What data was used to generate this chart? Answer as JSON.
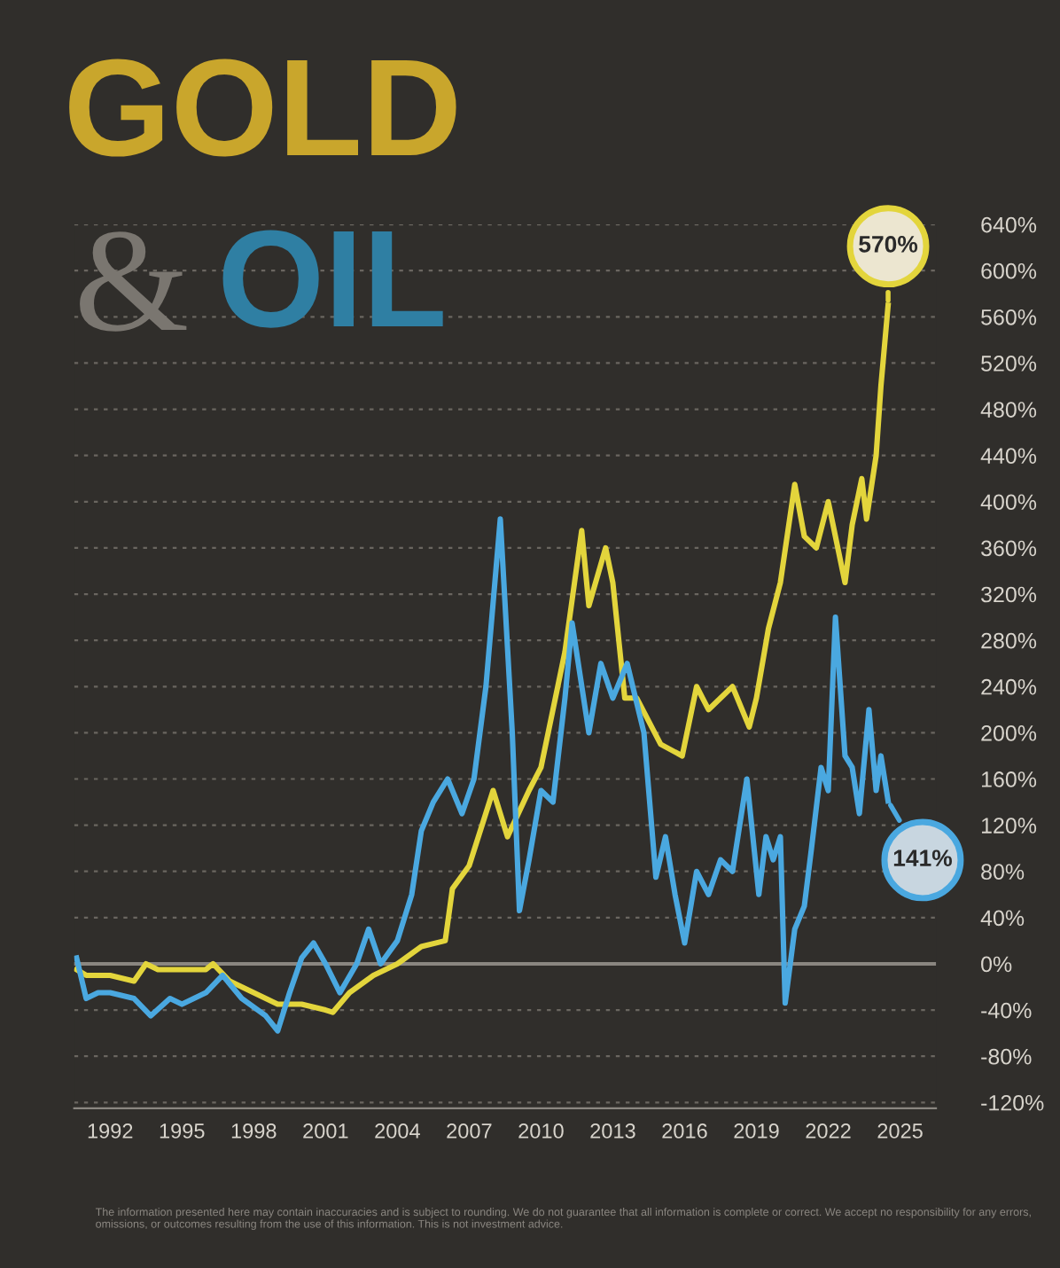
{
  "chart_data": {
    "type": "line",
    "title": "GOLD",
    "subtitle": "& OIL",
    "xlim": [
      1990.5,
      2026.5
    ],
    "xticks": [
      1992,
      1995,
      1998,
      2001,
      2004,
      2007,
      2010,
      2013,
      2016,
      2019,
      2022,
      2025
    ],
    "ylim": [
      -125,
      640
    ],
    "yticks": [
      {
        "value": -120,
        "label": "-120%"
      },
      {
        "value": -80,
        "label": "-80%"
      },
      {
        "value": -40,
        "label": "-40%"
      },
      {
        "value": 0,
        "label": "0%"
      },
      {
        "value": 40,
        "label": "40%"
      },
      {
        "value": 80,
        "label": "80%"
      },
      {
        "value": 120,
        "label": "120%"
      },
      {
        "value": 160,
        "label": "160%"
      },
      {
        "value": 200,
        "label": "200%"
      },
      {
        "value": 240,
        "label": "240%"
      },
      {
        "value": 280,
        "label": "280%"
      },
      {
        "value": 320,
        "label": "320%"
      },
      {
        "value": 360,
        "label": "360%"
      },
      {
        "value": 400,
        "label": "400%"
      },
      {
        "value": 440,
        "label": "440%"
      },
      {
        "value": 480,
        "label": "480%"
      },
      {
        "value": 520,
        "label": "520%"
      },
      {
        "value": 560,
        "label": "560%"
      },
      {
        "value": 600,
        "label": "600%"
      },
      {
        "value": 640,
        "label": "640%"
      }
    ],
    "grid": "y",
    "line_style": "solid",
    "marker": "none",
    "ref_lines": [
      {
        "axis": "y",
        "value": 0,
        "color": "#8a8680"
      }
    ],
    "series": [
      {
        "color": "#e3d53c",
        "x": [
          1990.6,
          1991,
          1992,
          1993,
          1993.5,
          1994,
          1995,
          1996,
          1996.3,
          1997,
          1998,
          1999,
          2000,
          2001,
          2001.3,
          2002,
          2003,
          2004,
          2005,
          2006,
          2006.3,
          2007,
          2008,
          2008.6,
          2009.5,
          2010,
          2011,
          2011.7,
          2012,
          2012.7,
          2013,
          2013.5,
          2014,
          2015,
          2015.9,
          2016.5,
          2017,
          2018,
          2018.7,
          2019,
          2019.5,
          2020,
          2020.6,
          2021,
          2021.5,
          2022,
          2022.7,
          2023,
          2023.4,
          2023.6,
          2024,
          2024.2,
          2024.5
        ],
        "values": [
          -5,
          -10,
          -10,
          -15,
          0,
          -5,
          -5,
          -5,
          0,
          -15,
          -25,
          -35,
          -35,
          -40,
          -42,
          -25,
          -10,
          0,
          15,
          20,
          65,
          85,
          150,
          110,
          150,
          170,
          270,
          375,
          310,
          360,
          330,
          230,
          230,
          190,
          180,
          240,
          220,
          240,
          205,
          230,
          290,
          330,
          415,
          370,
          360,
          400,
          330,
          380,
          420,
          385,
          440,
          500,
          570
        ]
      },
      {
        "color": "#4aa8e0",
        "x": [
          1990.6,
          1991,
          1991.5,
          1992,
          1993,
          1993.7,
          1994.5,
          1995,
          1996,
          1996.7,
          1997.5,
          1998.5,
          1999,
          1999.5,
          2000,
          2000.5,
          2001,
          2001.6,
          2002.3,
          2002.8,
          2003.3,
          2004,
          2004.6,
          2005,
          2005.5,
          2006.1,
          2006.7,
          2007.2,
          2007.7,
          2008.3,
          2008.8,
          2009.1,
          2009.5,
          2010,
          2010.5,
          2011,
          2011.3,
          2012,
          2012.5,
          2013,
          2013.6,
          2014.3,
          2014.8,
          2015.2,
          2015.6,
          2016,
          2016.5,
          2017,
          2017.5,
          2018,
          2018.6,
          2019.1,
          2019.4,
          2019.7,
          2020,
          2020.2,
          2020.6,
          2021,
          2021.3,
          2021.7,
          2022,
          2022.3,
          2022.7,
          2023,
          2023.3,
          2023.7,
          2024,
          2024.2,
          2024.5
        ],
        "values": [
          5,
          -30,
          -25,
          -25,
          -30,
          -45,
          -30,
          -35,
          -25,
          -10,
          -30,
          -45,
          -58,
          -25,
          5,
          18,
          0,
          -25,
          0,
          30,
          0,
          20,
          60,
          115,
          140,
          160,
          130,
          160,
          240,
          385,
          200,
          46,
          90,
          150,
          140,
          230,
          295,
          200,
          260,
          230,
          260,
          200,
          75,
          110,
          60,
          18,
          80,
          60,
          90,
          80,
          160,
          60,
          110,
          90,
          110,
          -34,
          30,
          50,
          100,
          170,
          150,
          300,
          180,
          170,
          130,
          220,
          150,
          180,
          141
        ]
      }
    ],
    "annotations": [
      {
        "text": "570%",
        "x": 2024.5,
        "y": 570
      },
      {
        "text": "141%",
        "x": 2024.5,
        "y": 141
      },
      "The information presented here may contain inaccuracies and is subject to rounding. We do not guarantee that all information is complete or correct. We accept no responsibility for any errors, omissions, or outcomes resulting from the use of this information. This is not investment advice."
    ]
  }
}
